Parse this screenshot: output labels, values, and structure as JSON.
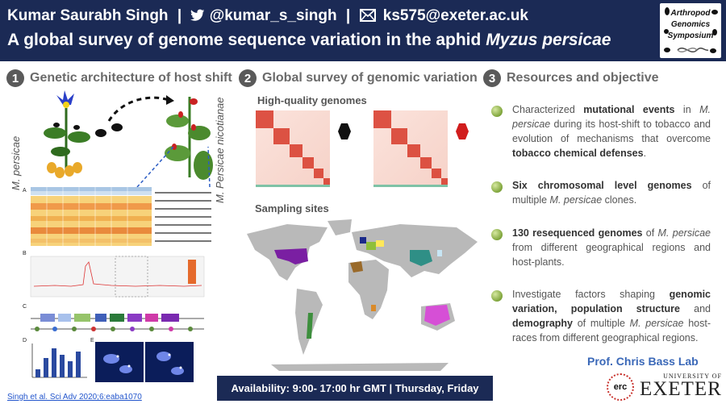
{
  "header": {
    "author": "Kumar Saurabh Singh",
    "twitter": "@kumar_s_singh",
    "email": "ks575@exeter.ac.uk",
    "title_prefix": "A global survey of genome sequence variation in the aphid ",
    "title_species": "Myzus persicae",
    "logo_lines": [
      "Arthropod",
      "Genomics",
      "Symposium"
    ]
  },
  "sections": [
    {
      "number": "1",
      "title": "Genetic architecture of host shift"
    },
    {
      "number": "2",
      "title": "Global survey of genomic variation"
    },
    {
      "number": "3",
      "title": "Resources and objective"
    }
  ],
  "section1": {
    "label_left": "M. persicae",
    "label_right": "M. Persicae nicotianae",
    "panel_letters": [
      "A",
      "B",
      "C",
      "D",
      "E"
    ]
  },
  "section2": {
    "genomes_label": "High-quality genomes",
    "sites_label": "Sampling sites"
  },
  "section3": {
    "bullets": [
      {
        "parts": [
          {
            "t": "Characterized "
          },
          {
            "t": "mutational events",
            "b": true
          },
          {
            "t": " in "
          },
          {
            "t": "M. persicae",
            "i": true
          },
          {
            "t": " during its host-shift to tobacco and evolution of mechanisms that overcome "
          },
          {
            "t": "tobacco chemical defenses",
            "b": true
          },
          {
            "t": "."
          }
        ]
      },
      {
        "parts": [
          {
            "t": "Six chromosomal level genomes",
            "b": true
          },
          {
            "t": " of multiple "
          },
          {
            "t": "M. persicae",
            "i": true
          },
          {
            "t": " clones."
          }
        ]
      },
      {
        "parts": [
          {
            "t": "130 resequenced genomes",
            "b": true
          },
          {
            "t": " of "
          },
          {
            "t": "M. persicae",
            "i": true
          },
          {
            "t": " from different geographical regions and host-plants."
          }
        ]
      },
      {
        "parts": [
          {
            "t": "Investigate factors shaping "
          },
          {
            "t": "genomic variation, population structure",
            "b": true
          },
          {
            "t": " and "
          },
          {
            "t": "demography",
            "b": true
          },
          {
            "t": " of multiple "
          },
          {
            "t": "M. persicae",
            "i": true
          },
          {
            "t": " host-races from different geographical regions."
          }
        ]
      }
    ]
  },
  "footer": {
    "availability": "Availability: 9:00- 17:00 hr GMT  |  Thursday, Friday",
    "reference": "Singh et al. Sci Adv 2020;6:eaba1070",
    "lab": "Prof. Chris Bass Lab",
    "erc": "erc",
    "university_small": "UNIVERSITY OF",
    "university": "EXETER"
  },
  "colors": {
    "header_bg": "#1b2a55",
    "bullet": "#7ea43a",
    "lab": "#3a68b8",
    "usa": "#7a1fa2",
    "china": "#2f8f86",
    "australia": "#d64fd6",
    "africa": "#9a6a2a"
  }
}
